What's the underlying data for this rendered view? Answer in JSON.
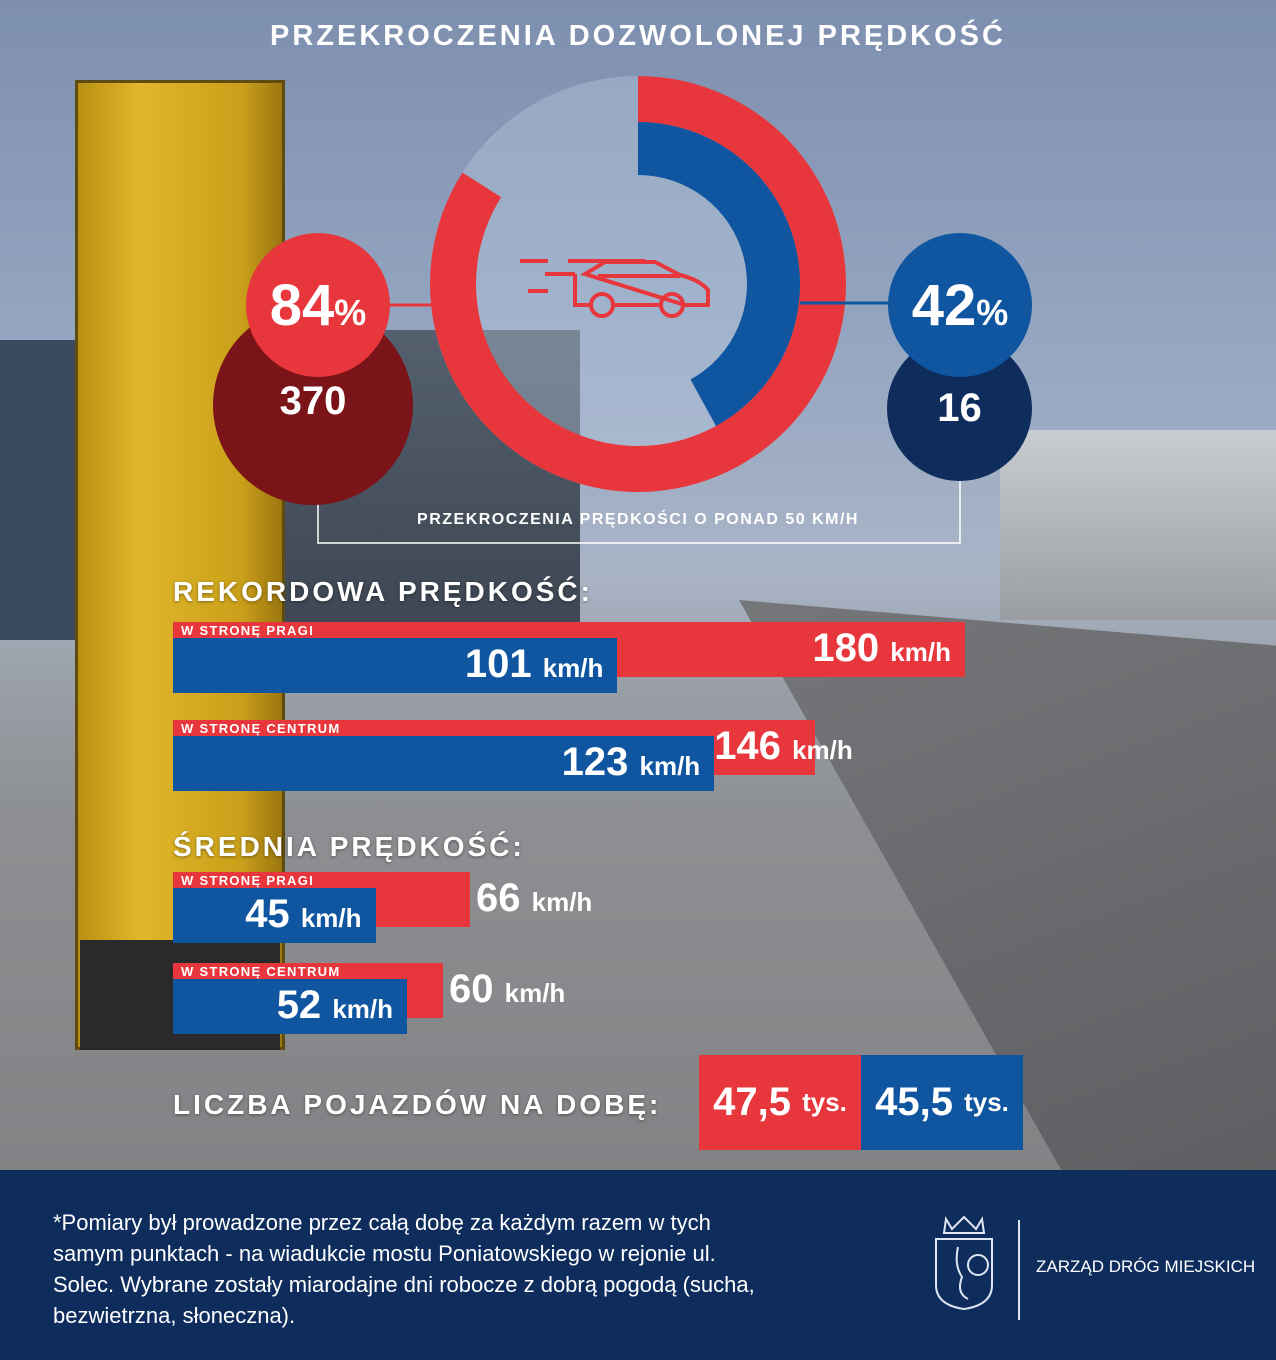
{
  "title": "PRZEKROCZENIA DOZWOLONEJ PRĘDKOŚĆ",
  "colors": {
    "red": "#e8373c",
    "blue": "#0f55a0",
    "dark_red": "#7a1418",
    "navy": "#0e2d5c"
  },
  "icons": {
    "center": "speeding-car-icon",
    "logo": "warsaw-coat-of-arms-mermaid"
  },
  "chart_data": [
    {
      "type": "pie",
      "subtype": "donut",
      "title": "PRZEKROCZENIA DOZWOLONEJ PRĘDKOŚĆ",
      "series": [
        {
          "label": "84%",
          "value": 84,
          "count_label": "370",
          "color": "#e8373c"
        },
        {
          "label": "42%",
          "value": 42,
          "count_label": "16",
          "color": "#0f55a0"
        }
      ],
      "caption": "PRZEKROCZENIA PRĘDKOŚCI O PONAD 50 KM/H"
    },
    {
      "type": "bar",
      "orientation": "horizontal",
      "title": "REKORDOWA PRĘDKOŚĆ:",
      "categories": [
        "W STRONĘ PRAGI",
        "W STRONĘ CENTRUM"
      ],
      "series": [
        {
          "values": [
            180,
            146
          ],
          "labels": [
            "180",
            "146"
          ],
          "color": "#e8373c"
        },
        {
          "values": [
            101,
            123
          ],
          "labels": [
            "101",
            "123"
          ],
          "color": "#0f55a0"
        }
      ],
      "unit": "km/h"
    },
    {
      "type": "bar",
      "orientation": "horizontal",
      "title": "ŚREDNIA PRĘDKOŚĆ:",
      "categories": [
        "W STRONĘ PRAGI",
        "W STRONĘ CENTRUM"
      ],
      "series": [
        {
          "values": [
            66,
            60
          ],
          "labels": [
            "66",
            "60"
          ],
          "color": "#e8373c"
        },
        {
          "values": [
            45,
            52
          ],
          "labels": [
            "45",
            "52"
          ],
          "color": "#0f55a0"
        }
      ],
      "unit": "km/h"
    },
    {
      "type": "table",
      "title": "LICZBA POJAZDÓW NA DOBĘ:",
      "values": [
        {
          "value": "47,5",
          "unit": "tys.",
          "color": "#e8373c"
        },
        {
          "value": "45,5",
          "unit": "tys.",
          "color": "#0f55a0"
        }
      ]
    }
  ],
  "footer": {
    "note": "*Pomiary był prowadzone przez całą dobę za każdym razem w tych samym punktach - na wiadukcie mostu Poniatowskiego w rejonie ul. Solec. Wybrane zostały miarodajne dni robocze z dobrą pogodą (sucha, bezwietrzna, słoneczna).",
    "org": "ZARZĄD DRÓG MIEJSKICH"
  }
}
